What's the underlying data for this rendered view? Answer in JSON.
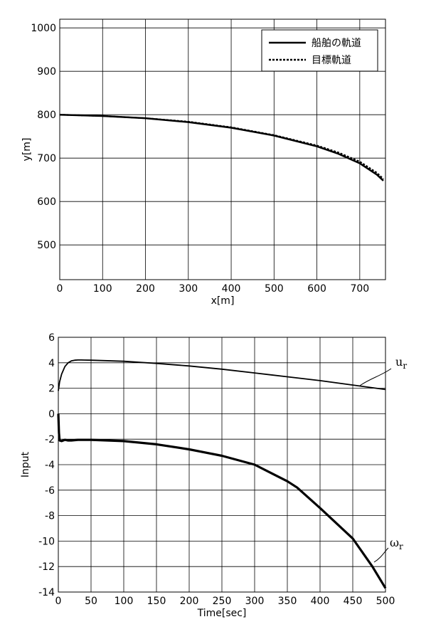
{
  "chart_data": [
    {
      "type": "line",
      "xlabel": "x[m]",
      "ylabel": "y[m]",
      "xlim": [
        0,
        760
      ],
      "ylim": [
        420,
        1020
      ],
      "xticks": [
        0,
        100,
        200,
        300,
        400,
        500,
        600,
        700
      ],
      "yticks": [
        500,
        600,
        700,
        800,
        900,
        1000
      ],
      "grid": true,
      "legend_position": "top-right",
      "series": [
        {
          "name": "船舶の軌道",
          "style": "solid",
          "x": [
            0,
            100,
            200,
            300,
            400,
            500,
            600,
            650,
            700,
            740,
            755
          ],
          "y": [
            800,
            797,
            792,
            783,
            770,
            752,
            727,
            710,
            688,
            662,
            648
          ]
        },
        {
          "name": "目標軌道",
          "style": "dashed",
          "x": [
            0,
            100,
            200,
            300,
            400,
            500,
            600,
            650,
            700,
            740,
            755
          ],
          "y": [
            800,
            797,
            792,
            784,
            771,
            753,
            729,
            713,
            692,
            666,
            652
          ]
        }
      ]
    },
    {
      "type": "line",
      "xlabel": "Time[sec]",
      "ylabel": "Input",
      "xlim": [
        0,
        500
      ],
      "ylim": [
        -14,
        6
      ],
      "xticks": [
        0,
        50,
        100,
        150,
        200,
        250,
        300,
        350,
        400,
        450,
        500
      ],
      "yticks": [
        -14,
        -12,
        -10,
        -8,
        -6,
        -4,
        -2,
        0,
        2,
        4,
        6
      ],
      "grid": true,
      "series": [
        {
          "name": "u",
          "name_sub": "r",
          "style": "solid",
          "x": [
            0,
            2,
            5,
            10,
            15,
            20,
            25,
            30,
            35,
            40,
            50,
            100,
            150,
            200,
            250,
            300,
            350,
            400,
            450,
            500
          ],
          "y": [
            1.8,
            2.5,
            3.1,
            3.7,
            4.0,
            4.15,
            4.2,
            4.22,
            4.22,
            4.21,
            4.2,
            4.12,
            3.95,
            3.75,
            3.5,
            3.2,
            2.9,
            2.6,
            2.25,
            1.9
          ]
        },
        {
          "name": "ω",
          "name_sub": "r",
          "style": "solid-thick",
          "x": [
            0,
            1,
            2,
            5,
            10,
            15,
            20,
            30,
            50,
            100,
            150,
            200,
            250,
            300,
            350,
            365,
            400,
            450,
            480,
            500
          ],
          "y": [
            0,
            -1.5,
            -2.1,
            -2.15,
            -2.05,
            -2.1,
            -2.1,
            -2.05,
            -2.05,
            -2.15,
            -2.4,
            -2.8,
            -3.3,
            -4.0,
            -5.3,
            -5.8,
            -7.4,
            -9.8,
            -12.0,
            -13.7
          ]
        }
      ]
    }
  ]
}
